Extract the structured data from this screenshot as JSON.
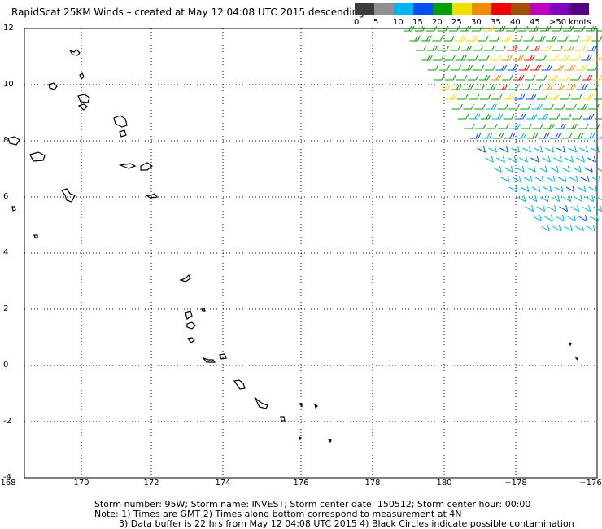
{
  "title": "RapidScat 25KM Winds – created at May 12 04:08 UTC 2015 descending",
  "legend": {
    "colors": [
      "#3c3c3c",
      "#909090",
      "#00b4f0",
      "#0050f0",
      "#00a000",
      "#f0e000",
      "#f08c00",
      "#f00000",
      "#a05000",
      "#c000c0",
      "#8000c0",
      "#500080"
    ],
    "ticks": [
      "0",
      "5",
      "10",
      "15",
      "20",
      "25",
      "30",
      "35",
      "40",
      "45",
      ">50 knots"
    ]
  },
  "map": {
    "lat_labels": [
      "12",
      "10",
      "8",
      "6",
      "4",
      "2",
      "0",
      "-2",
      "-4"
    ],
    "lon_labels": [
      "168",
      "170",
      "172",
      "174",
      "176",
      "178",
      "180",
      "−178",
      "−176"
    ]
  },
  "footer": {
    "line1": "Storm number: 95W;   Storm name: INVEST;   Storm center date: 150512;   Storm center hour: 00:00",
    "line2": "Note: 1) Times are GMT  2) Times along bottom correspond to measurement at 4N",
    "line3": "3) Data buffer is 22 hrs from May 12 04:08 UTC 2015   4) Black Circles indicate possible contamination"
  }
}
